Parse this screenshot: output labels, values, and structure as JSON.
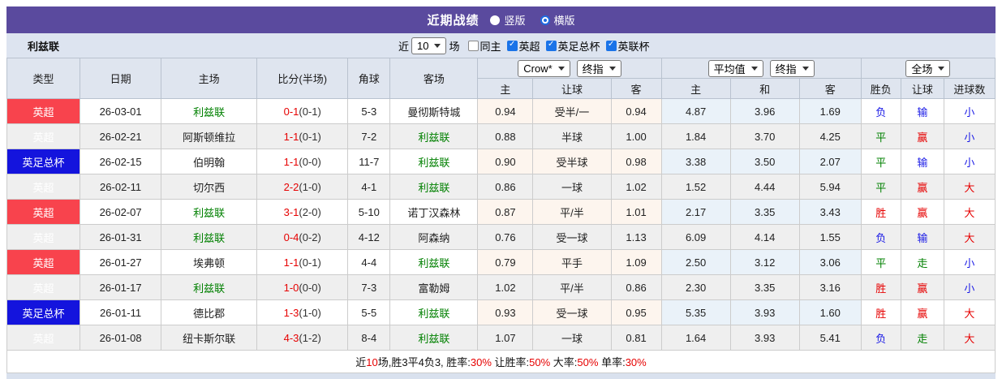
{
  "title_bar": {
    "title": "近期战绩",
    "radios": [
      {
        "label": "竖版",
        "selected": false
      },
      {
        "label": "横版",
        "selected": true
      }
    ]
  },
  "filter_bar": {
    "team_name": "利兹联",
    "recent_prefix": "近",
    "match_count": "10",
    "matches_suffix": "场",
    "checkboxes": [
      {
        "label": "同主",
        "checked": false
      },
      {
        "label": "英超",
        "checked": true
      },
      {
        "label": "英足总杯",
        "checked": true
      },
      {
        "label": "英联杯",
        "checked": true
      }
    ]
  },
  "table": {
    "selects": {
      "odds_company": "Crow*",
      "odds_index": "终指",
      "avg_type": "平均值",
      "avg_index": "终指",
      "scope": "全场"
    },
    "columns": [
      "类型",
      "日期",
      "主场",
      "比分(半场)",
      "角球",
      "客场",
      "主",
      "让球",
      "客",
      "主",
      "和",
      "客",
      "胜负",
      "让球",
      "进球数"
    ],
    "rows": [
      {
        "league": "英超",
        "league_color": "red",
        "date": "26-03-01",
        "home": "利兹联",
        "home_focus": true,
        "score": "0-1",
        "half": "(0-1)",
        "corner": "5-3",
        "away": "曼彻斯特城",
        "away_focus": false,
        "odds": [
          "0.94",
          "受半/一",
          "0.94"
        ],
        "avg": [
          "4.87",
          "3.96",
          "1.69"
        ],
        "result": {
          "text": "负",
          "color": "blue"
        },
        "handicap_result": {
          "text": "输",
          "color": "blue"
        },
        "goals": {
          "text": "小",
          "color": "blue"
        }
      },
      {
        "league": "英超",
        "league_color": "red",
        "date": "26-02-21",
        "home": "阿斯顿维拉",
        "home_focus": false,
        "score": "1-1",
        "half": "(0-1)",
        "corner": "7-2",
        "away": "利兹联",
        "away_focus": true,
        "odds": [
          "0.88",
          "半球",
          "1.00"
        ],
        "avg": [
          "1.84",
          "3.70",
          "4.25"
        ],
        "result": {
          "text": "平",
          "color": "green"
        },
        "handicap_result": {
          "text": "赢",
          "color": "red"
        },
        "goals": {
          "text": "小",
          "color": "blue"
        }
      },
      {
        "league": "英足总杯",
        "league_color": "blue",
        "date": "26-02-15",
        "home": "伯明翰",
        "home_focus": false,
        "score": "1-1",
        "half": "(0-0)",
        "corner": "11-7",
        "away": "利兹联",
        "away_focus": true,
        "odds": [
          "0.90",
          "受半球",
          "0.98"
        ],
        "avg": [
          "3.38",
          "3.50",
          "2.07"
        ],
        "result": {
          "text": "平",
          "color": "green"
        },
        "handicap_result": {
          "text": "输",
          "color": "blue"
        },
        "goals": {
          "text": "小",
          "color": "blue"
        }
      },
      {
        "league": "英超",
        "league_color": "red",
        "date": "26-02-11",
        "home": "切尔西",
        "home_focus": false,
        "score": "2-2",
        "half": "(1-0)",
        "corner": "4-1",
        "away": "利兹联",
        "away_focus": true,
        "odds": [
          "0.86",
          "一球",
          "1.02"
        ],
        "avg": [
          "1.52",
          "4.44",
          "5.94"
        ],
        "result": {
          "text": "平",
          "color": "green"
        },
        "handicap_result": {
          "text": "赢",
          "color": "red"
        },
        "goals": {
          "text": "大",
          "color": "red"
        }
      },
      {
        "league": "英超",
        "league_color": "red",
        "date": "26-02-07",
        "home": "利兹联",
        "home_focus": true,
        "score": "3-1",
        "half": "(2-0)",
        "corner": "5-10",
        "away": "诺丁汉森林",
        "away_focus": false,
        "odds": [
          "0.87",
          "平/半",
          "1.01"
        ],
        "avg": [
          "2.17",
          "3.35",
          "3.43"
        ],
        "result": {
          "text": "胜",
          "color": "red"
        },
        "handicap_result": {
          "text": "赢",
          "color": "red"
        },
        "goals": {
          "text": "大",
          "color": "red"
        }
      },
      {
        "league": "英超",
        "league_color": "red",
        "date": "26-01-31",
        "home": "利兹联",
        "home_focus": true,
        "score": "0-4",
        "half": "(0-2)",
        "corner": "4-12",
        "away": "阿森纳",
        "away_focus": false,
        "odds": [
          "0.76",
          "受一球",
          "1.13"
        ],
        "avg": [
          "6.09",
          "4.14",
          "1.55"
        ],
        "result": {
          "text": "负",
          "color": "blue"
        },
        "handicap_result": {
          "text": "输",
          "color": "blue"
        },
        "goals": {
          "text": "大",
          "color": "red"
        }
      },
      {
        "league": "英超",
        "league_color": "red",
        "date": "26-01-27",
        "home": "埃弗顿",
        "home_focus": false,
        "score": "1-1",
        "half": "(0-1)",
        "corner": "4-4",
        "away": "利兹联",
        "away_focus": true,
        "odds": [
          "0.79",
          "平手",
          "1.09"
        ],
        "avg": [
          "2.50",
          "3.12",
          "3.06"
        ],
        "result": {
          "text": "平",
          "color": "green"
        },
        "handicap_result": {
          "text": "走",
          "color": "green"
        },
        "goals": {
          "text": "小",
          "color": "blue"
        }
      },
      {
        "league": "英超",
        "league_color": "red",
        "date": "26-01-17",
        "home": "利兹联",
        "home_focus": true,
        "score": "1-0",
        "half": "(0-0)",
        "corner": "7-3",
        "away": "富勒姆",
        "away_focus": false,
        "odds": [
          "1.02",
          "平/半",
          "0.86"
        ],
        "avg": [
          "2.30",
          "3.35",
          "3.16"
        ],
        "result": {
          "text": "胜",
          "color": "red"
        },
        "handicap_result": {
          "text": "赢",
          "color": "red"
        },
        "goals": {
          "text": "小",
          "color": "blue"
        }
      },
      {
        "league": "英足总杯",
        "league_color": "blue",
        "date": "26-01-11",
        "home": "德比郡",
        "home_focus": false,
        "score": "1-3",
        "half": "(1-0)",
        "corner": "5-5",
        "away": "利兹联",
        "away_focus": true,
        "odds": [
          "0.93",
          "受一球",
          "0.95"
        ],
        "avg": [
          "5.35",
          "3.93",
          "1.60"
        ],
        "result": {
          "text": "胜",
          "color": "red"
        },
        "handicap_result": {
          "text": "赢",
          "color": "red"
        },
        "goals": {
          "text": "大",
          "color": "red"
        }
      },
      {
        "league": "英超",
        "league_color": "red",
        "date": "26-01-08",
        "home": "纽卡斯尔联",
        "home_focus": false,
        "score": "4-3",
        "half": "(1-2)",
        "corner": "8-4",
        "away": "利兹联",
        "away_focus": true,
        "odds": [
          "1.07",
          "一球",
          "0.81"
        ],
        "avg": [
          "1.64",
          "3.93",
          "5.41"
        ],
        "result": {
          "text": "负",
          "color": "blue"
        },
        "handicap_result": {
          "text": "走",
          "color": "green"
        },
        "goals": {
          "text": "大",
          "color": "red"
        }
      }
    ]
  },
  "footer": {
    "segments": [
      {
        "text": "近",
        "red": false
      },
      {
        "text": "10",
        "red": true
      },
      {
        "text": "场,胜3平4负3, 胜率:",
        "red": false
      },
      {
        "text": "30%",
        "red": true
      },
      {
        "text": " 让胜率:",
        "red": false
      },
      {
        "text": "50%",
        "red": true
      },
      {
        "text": " 大率:",
        "red": false
      },
      {
        "text": "50%",
        "red": true
      },
      {
        "text": " 单率:",
        "red": false
      },
      {
        "text": "30%",
        "red": true
      }
    ]
  },
  "colors": {
    "accent_purple": "#5a4a9e",
    "league_red": "#f8434d",
    "league_blue": "#1414dd",
    "win_red": "#e60000",
    "lose_blue": "#1a1ae6",
    "draw_green": "#008000",
    "focus_team_green": "#008000"
  }
}
